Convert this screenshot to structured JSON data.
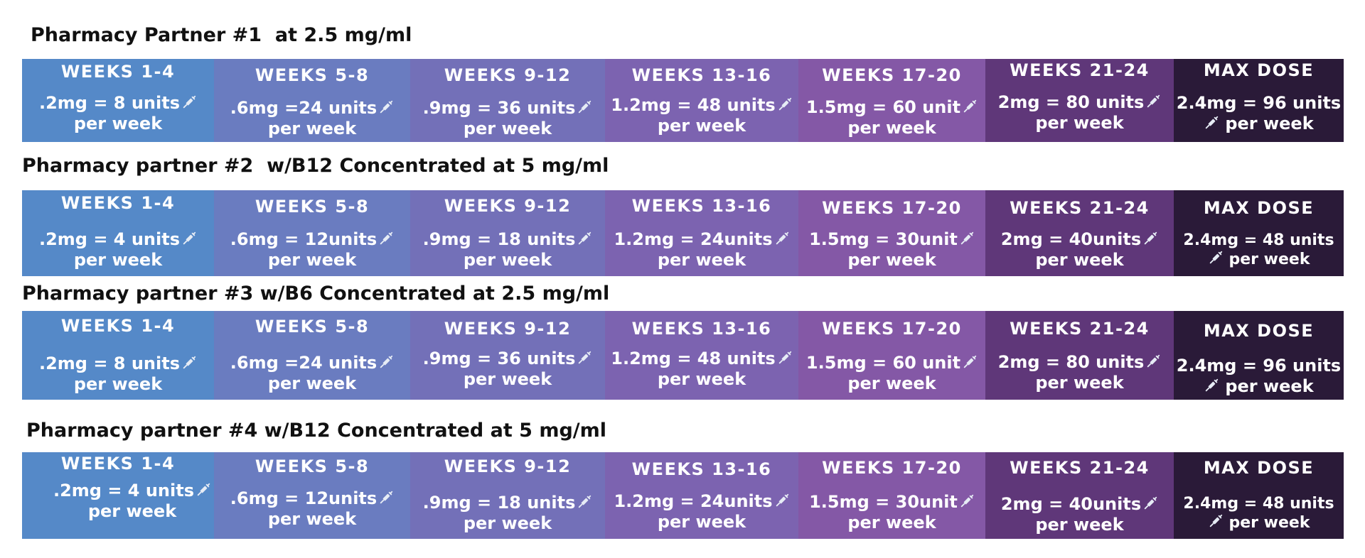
{
  "sections": [
    {
      "title": "Pharmacy Partner #1  at 2.5 mg/ml",
      "cells": [
        {
          "header": "WEEKS 1-4",
          "dose": ".2mg = 8 units",
          "per": "per week"
        },
        {
          "header": "WEEKS 5-8",
          "dose": ".6mg =24 units",
          "per": "per week"
        },
        {
          "header": "WEEKS 9-12",
          "dose": ".9mg = 36 units",
          "per": "per week"
        },
        {
          "header": "WEEKS 13-16",
          "dose": "1.2mg = 48 units",
          "per": "per week"
        },
        {
          "header": "WEEKS 17-20",
          "dose": "1.5mg = 60 unit",
          "per": "per week"
        },
        {
          "header": "WEEKS 21-24",
          "dose": "2mg = 80 units",
          "per": "per week"
        },
        {
          "header": "MAX DOSE",
          "dose": "2.4mg = 96 units",
          "per": "per week"
        }
      ]
    },
    {
      "title": "Pharmacy partner #2  w/B12 Concentrated at 5 mg/ml",
      "cells": [
        {
          "header": "WEEKS 1-4",
          "dose": ".2mg = 4 units",
          "per": "per week"
        },
        {
          "header": "WEEKS 5-8",
          "dose": ".6mg = 12units",
          "per": "per week"
        },
        {
          "header": "WEEKS 9-12",
          "dose": ".9mg = 18 units",
          "per": "per week"
        },
        {
          "header": "WEEKS 13-16",
          "dose": "1.2mg = 24units",
          "per": "per week"
        },
        {
          "header": "WEEKS 17-20",
          "dose": "1.5mg = 30unit",
          "per": "per week"
        },
        {
          "header": "WEEKS 21-24",
          "dose": "2mg = 40units",
          "per": "per week"
        },
        {
          "header": "MAX DOSE",
          "dose": "2.4mg = 48 units",
          "per": "per week"
        }
      ]
    },
    {
      "title": "Pharmacy partner #3 w/B6 Concentrated at 2.5 mg/ml",
      "cells": [
        {
          "header": "WEEKS 1-4",
          "dose": ".2mg = 8 units",
          "per": "per week"
        },
        {
          "header": "WEEKS 5-8",
          "dose": ".6mg =24 units",
          "per": "per week"
        },
        {
          "header": "WEEKS 9-12",
          "dose": ".9mg = 36 units",
          "per": "per week"
        },
        {
          "header": "WEEKS 13-16",
          "dose": "1.2mg = 48 units",
          "per": "per week"
        },
        {
          "header": "WEEKS 17-20",
          "dose": "1.5mg = 60 unit",
          "per": "per week"
        },
        {
          "header": "WEEKS 21-24",
          "dose": "2mg = 80 units",
          "per": "per week"
        },
        {
          "header": "MAX DOSE",
          "dose": "2.4mg = 96 units",
          "per": "per week"
        }
      ]
    },
    {
      "title": "Pharmacy partner #4 w/B12 Concentrated at 5 mg/ml",
      "cells": [
        {
          "header": "WEEKS 1-4",
          "dose": ".2mg = 4 units",
          "per": "per week"
        },
        {
          "header": "WEEKS 5-8",
          "dose": ".6mg = 12units",
          "per": "per week"
        },
        {
          "header": "WEEKS 9-12",
          "dose": ".9mg = 18 units",
          "per": "per week"
        },
        {
          "header": "WEEKS 13-16",
          "dose": "1.2mg = 24units",
          "per": "per week"
        },
        {
          "header": "WEEKS 17-20",
          "dose": "1.5mg = 30unit",
          "per": "per week"
        },
        {
          "header": "WEEKS 21-24",
          "dose": "2mg = 40units",
          "per": "per week"
        },
        {
          "header": "MAX DOSE",
          "dose": "2.4mg = 48 units",
          "per": "per week"
        }
      ]
    }
  ],
  "icon": "syringe-icon",
  "colors": {
    "weeks_1_4": "#5589c8",
    "weeks_5_8": "#6a7cc0",
    "weeks_9_12": "#7370b8",
    "weeks_13_16": "#7c63b0",
    "weeks_17_20": "#8458a6",
    "weeks_21_24": "#5f3779",
    "max_dose": "#2a1a38",
    "title_text": "#111111",
    "cell_text": "#ffffff"
  }
}
